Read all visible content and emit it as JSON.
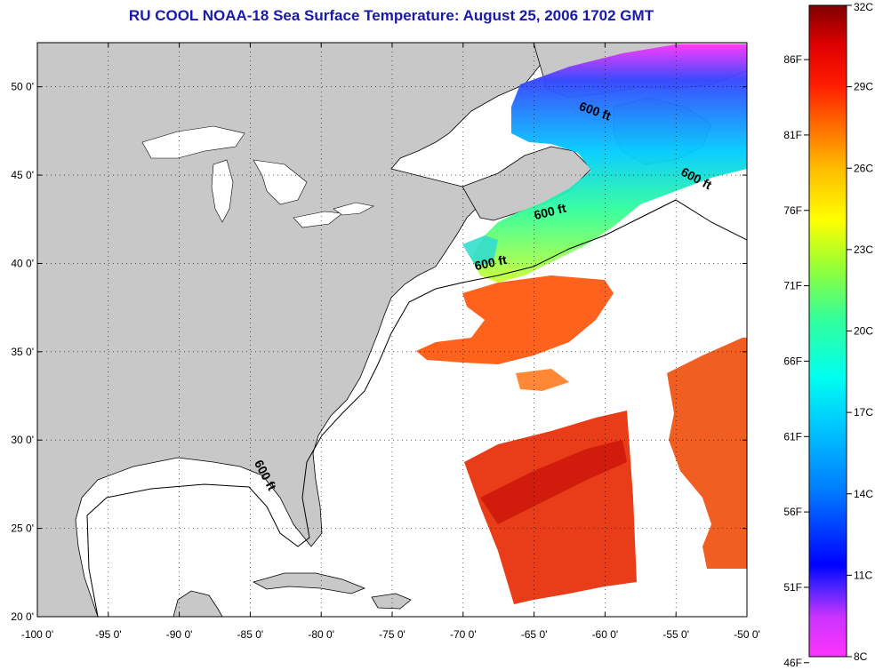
{
  "title": "RU COOL  NOAA-18  Sea Surface Temperature:  August 25, 2006 1702 GMT",
  "map": {
    "lon_range": [
      -100,
      -50
    ],
    "lat_range": [
      20,
      52.5
    ],
    "lon_ticks": [
      {
        "value": -100,
        "label": "-100 0'"
      },
      {
        "value": -95,
        "label": "-95 0'"
      },
      {
        "value": -90,
        "label": "-90 0'"
      },
      {
        "value": -85,
        "label": "-85 0'"
      },
      {
        "value": -80,
        "label": "-80 0'"
      },
      {
        "value": -75,
        "label": "-75 0'"
      },
      {
        "value": -70,
        "label": "-70 0'"
      },
      {
        "value": -65,
        "label": "-65 0'"
      },
      {
        "value": -60,
        "label": "-60 0'"
      },
      {
        "value": -55,
        "label": "-55 0'"
      },
      {
        "value": -50,
        "label": "-50 0'"
      }
    ],
    "lat_ticks": [
      {
        "value": 50,
        "label": "50 0'"
      },
      {
        "value": 45,
        "label": "45 0'"
      },
      {
        "value": 40,
        "label": "40 0'"
      },
      {
        "value": 35,
        "label": "35 0'"
      },
      {
        "value": 30,
        "label": "30 0'"
      },
      {
        "value": 25,
        "label": "25 0'"
      },
      {
        "value": 20,
        "label": "20 0'"
      }
    ],
    "grid": "dotted",
    "land_color": "#c8c8c8",
    "water_color": "#ffffff",
    "contour_labels": [
      {
        "text": "600 ft",
        "lon": -60.8,
        "lat": 48.4,
        "rotate": 20
      },
      {
        "text": "600 ft",
        "lon": -53.7,
        "lat": 44.6,
        "rotate": 28
      },
      {
        "text": "600 ft",
        "lon": -63.8,
        "lat": 42.7,
        "rotate": -14
      },
      {
        "text": "600 ft",
        "lon": -68.0,
        "lat": 39.8,
        "rotate": -12
      },
      {
        "text": "600 ft",
        "lon": -84.2,
        "lat": 27.9,
        "rotate": 62
      }
    ]
  },
  "colorbar": {
    "top_celsius": "32C",
    "bottom_celsius": "8C",
    "celsius_labels": [
      "32C",
      "29C",
      "26C",
      "23C",
      "20C",
      "17C",
      "14C",
      "11C",
      "8C"
    ],
    "fahrenheit_labels": [
      "86F",
      "81F",
      "76F",
      "71F",
      "66F",
      "61F",
      "56F",
      "51F",
      "46F"
    ],
    "fahrenheit_values": [
      86,
      81,
      76,
      71,
      66,
      61,
      56,
      51,
      46
    ],
    "celsius_values": [
      32,
      29,
      26,
      23,
      20,
      17,
      14,
      11,
      8
    ],
    "colors_bottom_to_top": [
      "#ff33ff",
      "#9933ff",
      "#0000ff",
      "#0077ff",
      "#00ccff",
      "#00ffcc",
      "#33ff66",
      "#ccff00",
      "#ffff00",
      "#ffaa00",
      "#ff6600",
      "#ff1100",
      "#cc0000",
      "#800000"
    ]
  }
}
